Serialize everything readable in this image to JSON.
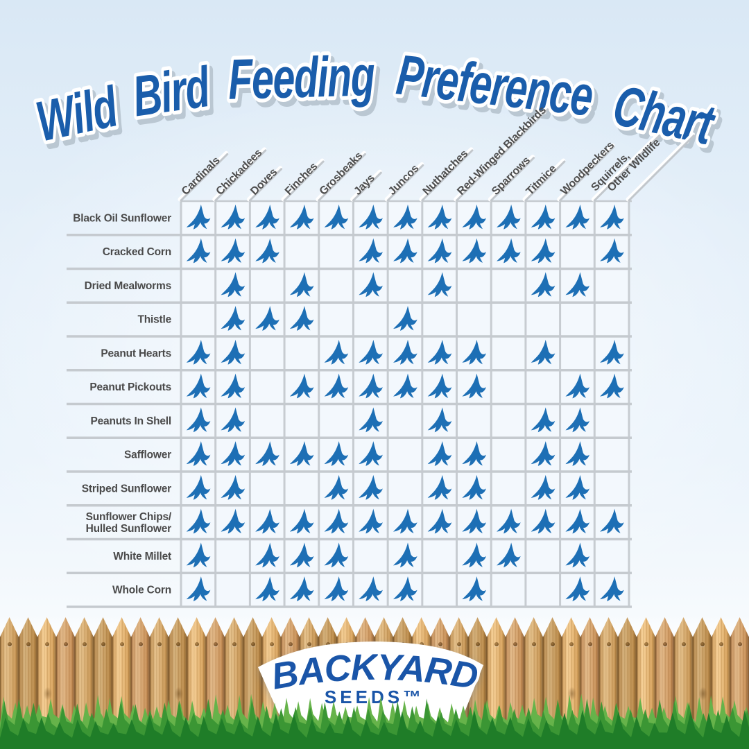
{
  "title": "Wild Bird Feeding Preference Chart",
  "logo": {
    "name": "BACKYARD",
    "sub": "SEEDS™"
  },
  "chart_data": {
    "type": "table",
    "title": "Wild Bird Feeding Preference Chart",
    "legend": "Blue flying-bird icon in a cell = that bird or animal eats that seed type",
    "icon": "blue-flying-bird-silhouette",
    "columns": [
      "Cardinals",
      "Chickadees",
      "Doves",
      "Finches",
      "Grosbeaks",
      "Jays",
      "Juncos",
      "Nuthatches",
      "Red-Winged Blackbirds",
      "Sparrows",
      "Titmice",
      "Woodpeckers",
      "Squirrels, Other Wildlife"
    ],
    "rows": [
      {
        "label": "Black Oil Sunflower",
        "eats": [
          1,
          1,
          1,
          1,
          1,
          1,
          1,
          1,
          1,
          1,
          1,
          1,
          1
        ]
      },
      {
        "label": "Cracked Corn",
        "eats": [
          1,
          1,
          1,
          0,
          0,
          1,
          1,
          1,
          1,
          1,
          1,
          0,
          1
        ]
      },
      {
        "label": "Dried Mealworms",
        "eats": [
          0,
          1,
          0,
          1,
          0,
          1,
          0,
          1,
          0,
          0,
          1,
          1,
          0
        ]
      },
      {
        "label": "Thistle",
        "eats": [
          0,
          1,
          1,
          1,
          0,
          0,
          1,
          0,
          0,
          0,
          0,
          0,
          0
        ]
      },
      {
        "label": "Peanut Hearts",
        "eats": [
          1,
          1,
          0,
          0,
          1,
          1,
          1,
          1,
          1,
          0,
          1,
          0,
          1
        ]
      },
      {
        "label": "Peanut Pickouts",
        "eats": [
          1,
          1,
          0,
          1,
          1,
          1,
          1,
          1,
          1,
          0,
          0,
          1,
          1
        ]
      },
      {
        "label": "Peanuts In Shell",
        "eats": [
          1,
          1,
          0,
          0,
          0,
          1,
          0,
          1,
          0,
          0,
          1,
          1,
          0
        ]
      },
      {
        "label": "Safflower",
        "eats": [
          1,
          1,
          1,
          1,
          1,
          1,
          0,
          1,
          1,
          0,
          1,
          1,
          0
        ]
      },
      {
        "label": "Striped Sunflower",
        "eats": [
          1,
          1,
          0,
          0,
          1,
          1,
          0,
          1,
          1,
          0,
          1,
          1,
          0
        ]
      },
      {
        "label": "Sunflower Chips/Hulled Sunflower",
        "eats": [
          1,
          1,
          1,
          1,
          1,
          1,
          1,
          1,
          1,
          1,
          1,
          1,
          1
        ]
      },
      {
        "label": "White Millet",
        "eats": [
          1,
          0,
          1,
          1,
          1,
          0,
          1,
          0,
          1,
          1,
          0,
          1,
          0
        ]
      },
      {
        "label": "Whole Corn",
        "eats": [
          1,
          0,
          1,
          1,
          1,
          1,
          1,
          0,
          1,
          0,
          0,
          1,
          1
        ]
      }
    ],
    "colors": {
      "icon_blue": "#1d6fb5",
      "title_blue": "#1a5dab",
      "label_gray": "#4a4a4a",
      "grid_gray": "#c7ccd1",
      "background_blue": "#e3eef8",
      "fence_wood": "#d9ad6f",
      "grass_green": "#2f8c30"
    }
  }
}
